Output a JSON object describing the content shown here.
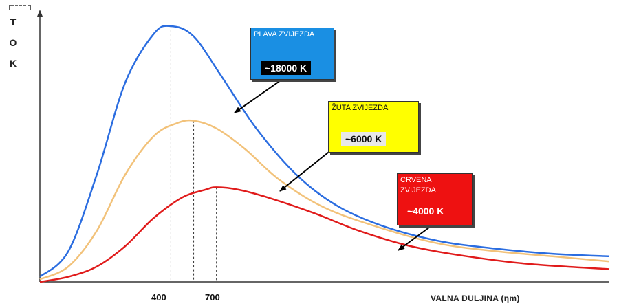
{
  "chart_data": {
    "type": "line",
    "title": "",
    "xlabel": "VALNA DULJINA (ηm)",
    "ylabel_letters": [
      "T",
      "O",
      "K"
    ],
    "x_ticks": [
      "400",
      "700"
    ],
    "grid": false,
    "series": [
      {
        "name": "PLAVA ZVIJEZDA",
        "temperature": "~18000 K",
        "color": "#2b6de0",
        "peak_x": 0.23,
        "peak_y": 1.0,
        "points": [
          [
            0.0,
            0.02
          ],
          [
            0.05,
            0.12
          ],
          [
            0.1,
            0.42
          ],
          [
            0.15,
            0.78
          ],
          [
            0.2,
            0.97
          ],
          [
            0.23,
            1.0
          ],
          [
            0.27,
            0.96
          ],
          [
            0.32,
            0.8
          ],
          [
            0.38,
            0.6
          ],
          [
            0.45,
            0.42
          ],
          [
            0.52,
            0.3
          ],
          [
            0.6,
            0.22
          ],
          [
            0.7,
            0.16
          ],
          [
            0.8,
            0.13
          ],
          [
            0.9,
            0.11
          ],
          [
            1.0,
            0.1
          ]
        ]
      },
      {
        "name": "ŽUTA ZVIJEZDA",
        "temperature": "~6000 K",
        "color": "#f2c27a",
        "peak_x": 0.27,
        "peak_y": 0.63,
        "points": [
          [
            0.0,
            0.01
          ],
          [
            0.05,
            0.06
          ],
          [
            0.1,
            0.2
          ],
          [
            0.15,
            0.42
          ],
          [
            0.2,
            0.57
          ],
          [
            0.24,
            0.62
          ],
          [
            0.27,
            0.63
          ],
          [
            0.31,
            0.6
          ],
          [
            0.36,
            0.52
          ],
          [
            0.42,
            0.4
          ],
          [
            0.5,
            0.29
          ],
          [
            0.6,
            0.21
          ],
          [
            0.7,
            0.15
          ],
          [
            0.8,
            0.12
          ],
          [
            0.9,
            0.1
          ],
          [
            1.0,
            0.08
          ]
        ]
      },
      {
        "name": "CRVENA ZVIJEZDA",
        "temperature": "~4000 K",
        "color": "#e01b1b",
        "peak_x": 0.31,
        "peak_y": 0.37,
        "points": [
          [
            0.0,
            0.0
          ],
          [
            0.05,
            0.02
          ],
          [
            0.1,
            0.06
          ],
          [
            0.15,
            0.14
          ],
          [
            0.2,
            0.25
          ],
          [
            0.25,
            0.33
          ],
          [
            0.29,
            0.36
          ],
          [
            0.31,
            0.37
          ],
          [
            0.35,
            0.36
          ],
          [
            0.4,
            0.33
          ],
          [
            0.48,
            0.27
          ],
          [
            0.56,
            0.2
          ],
          [
            0.65,
            0.14
          ],
          [
            0.75,
            0.1
          ],
          [
            0.86,
            0.07
          ],
          [
            1.0,
            0.05
          ]
        ]
      }
    ]
  },
  "callouts": {
    "blue": {
      "name": "PLAVA ZVIJEZDA",
      "temp": "~18000 K"
    },
    "yellow": {
      "name": "ŽUTA ZVIJEZDA",
      "temp": "~6000 K"
    },
    "red": {
      "name": "CRVENA ZVIJEZDA",
      "temp": "~4000 K"
    }
  }
}
